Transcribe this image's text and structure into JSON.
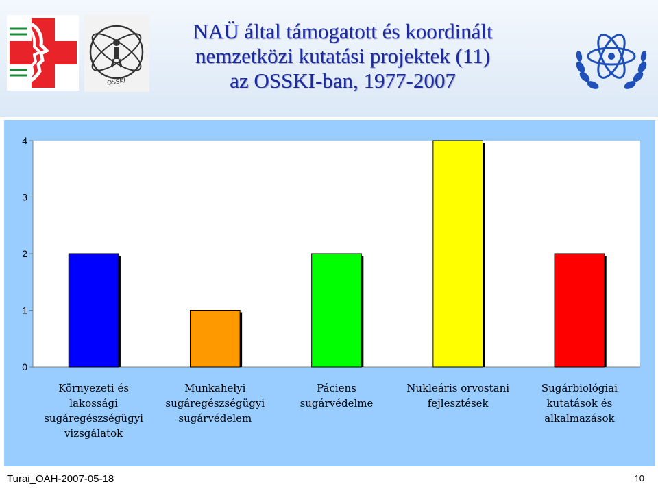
{
  "slide": {
    "title_lines": [
      "NAÜ által támogatott és koordinált",
      "nemzetközi kutatási projektek (11)",
      "az OSSKI-ban, 1977-2007"
    ],
    "footer_left": "Turai_OAH-2007-05-18",
    "page_number": "10",
    "logo_text": "OSSKI"
  },
  "colors": {
    "chart_background": "#99ccff",
    "plot_background": "#ffffff",
    "title_color": "#1b2b9e"
  },
  "chart_data": {
    "type": "bar",
    "categories": [
      [
        "Környezeti és",
        "lakossági",
        "sugáregészségügyi",
        "vizsgálatok"
      ],
      [
        "Munkahelyi",
        "sugáregészségügyi",
        "sugárvédelem"
      ],
      [
        "Páciens",
        "sugárvédelme"
      ],
      [
        "Nukleáris orvostani",
        "fejlesztések"
      ],
      [
        "Sugárbiológiai",
        "kutatások és",
        "alkalmazások"
      ]
    ],
    "values": [
      2,
      1,
      2,
      4,
      2
    ],
    "bar_colors": [
      "#0000ff",
      "#ff9900",
      "#00ff00",
      "#ffff00",
      "#ff0000"
    ],
    "y_ticks": [
      "0",
      "1",
      "2",
      "3",
      "4"
    ],
    "ylim": [
      0,
      4
    ],
    "grid": false,
    "legend": "none"
  }
}
